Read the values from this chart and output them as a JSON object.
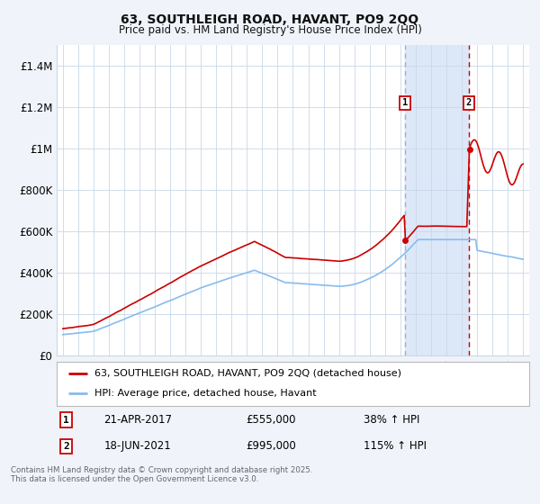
{
  "title": "63, SOUTHLEIGH ROAD, HAVANT, PO9 2QQ",
  "subtitle": "Price paid vs. HM Land Registry's House Price Index (HPI)",
  "legend_label_red": "63, SOUTHLEIGH ROAD, HAVANT, PO9 2QQ (detached house)",
  "legend_label_blue": "HPI: Average price, detached house, Havant",
  "annotation1_label": "1",
  "annotation1_date": "21-APR-2017",
  "annotation1_price": "£555,000",
  "annotation1_hpi": "38% ↑ HPI",
  "annotation2_label": "2",
  "annotation2_date": "18-JUN-2021",
  "annotation2_price": "£995,000",
  "annotation2_hpi": "115% ↑ HPI",
  "footer": "Contains HM Land Registry data © Crown copyright and database right 2025.\nThis data is licensed under the Open Government Licence v3.0.",
  "bg_color": "#f0f4fa",
  "plot_bg_color": "#ffffff",
  "red_color": "#cc0000",
  "blue_color": "#88bbee",
  "highlight_bg": "#dce8f8",
  "grid_color": "#c8d8e8",
  "annotation_box_color": "#cc0000",
  "vline1_color": "#aaaacc",
  "vline2_color": "#cc0000",
  "ylim": [
    0,
    1500000
  ],
  "yticks": [
    0,
    200000,
    400000,
    600000,
    800000,
    1000000,
    1200000,
    1400000
  ],
  "ytick_labels": [
    "£0",
    "£200K",
    "£400K",
    "£600K",
    "£800K",
    "£1M",
    "£1.2M",
    "£1.4M"
  ],
  "year_start": 1995,
  "year_end": 2025,
  "sale1_year": 2017.31,
  "sale2_year": 2021.46,
  "sale1_price": 555000,
  "sale2_price": 995000
}
